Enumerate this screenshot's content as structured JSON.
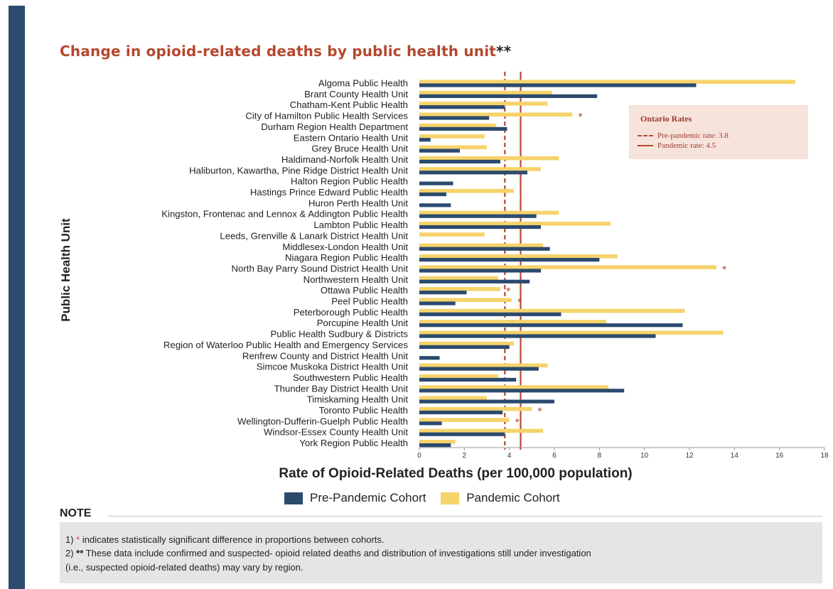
{
  "chart_data": {
    "type": "bar",
    "orientation": "horizontal",
    "title": "Change in opioid-related deaths by public health unit",
    "title_suffix": "**",
    "xlabel": "Rate of Opioid-Related Deaths (per 100,000 population)",
    "ylabel": "Public Health Unit",
    "xlim": [
      0,
      18
    ],
    "xticks": [
      0,
      2,
      4,
      6,
      8,
      10,
      12,
      14,
      16,
      18
    ],
    "grid": false,
    "categories": [
      "Algoma Public Health",
      "Brant County Health Unit",
      "Chatham-Kent Public Health",
      "City of Hamilton Public Health Services",
      "Durham Region Health Department",
      "Eastern Ontario Health Unit",
      "Grey Bruce Health Unit",
      "Haldimand-Norfolk Health Unit",
      "Haliburton, Kawartha, Pine Ridge District Health Unit",
      "Halton Region Public Health",
      "Hastings Prince Edward Public Health",
      "Huron Perth Health Unit",
      "Kingston, Frontenac and Lennox & Addington Public Health",
      "Lambton Public Health",
      "Leeds, Grenville & Lanark District Health Unit",
      "Middlesex-London Health Unit",
      "Niagara Region Public Health",
      "North Bay Parry Sound District Health Unit",
      "Northwestern Health Unit",
      "Ottawa Public Health",
      "Peel Public Health",
      "Peterborough Public Health",
      "Porcupine Health Unit",
      "Public Health Sudbury & Districts",
      "Region of Waterloo Public Health and Emergency Services",
      "Renfrew County and District Health Unit",
      "Simcoe Muskoka District Health Unit",
      "Southwestern Public Health",
      "Thunder Bay District Health Unit",
      "Timiskaming Health Unit",
      "Toronto Public Health",
      "Wellington-Dufferin-Guelph Public Health",
      "Windsor-Essex County Health Unit",
      "York Region Public Health"
    ],
    "series": [
      {
        "name": "Pre-Pandemic Cohort",
        "color": "#2b4a6e",
        "values": [
          12.3,
          7.9,
          3.8,
          3.1,
          3.9,
          0.5,
          1.8,
          3.6,
          4.8,
          1.5,
          1.2,
          1.4,
          5.2,
          5.4,
          0,
          5.8,
          8.0,
          5.4,
          4.9,
          2.1,
          1.6,
          6.3,
          11.7,
          10.5,
          4.0,
          0.9,
          5.3,
          4.3,
          9.1,
          6.0,
          3.7,
          1.0,
          3.8,
          1.4
        ]
      },
      {
        "name": "Pandemic Cohort",
        "color": "#f6d36b",
        "values": [
          16.7,
          5.9,
          5.7,
          6.8,
          3.4,
          2.9,
          3.0,
          6.2,
          5.4,
          0,
          4.2,
          0,
          6.2,
          8.5,
          2.9,
          5.5,
          8.8,
          13.2,
          3.5,
          3.6,
          4.1,
          11.8,
          8.3,
          13.5,
          4.2,
          0,
          5.7,
          3.5,
          8.4,
          3.0,
          5.0,
          4.0,
          5.5,
          1.6
        ]
      }
    ],
    "significant": [
      "City of Hamilton Public Health Services",
      "North Bay Parry Sound District Health Unit",
      "Ottawa Public Health",
      "Peel Public Health",
      "Toronto Public Health",
      "Wellington-Dufferin-Guelph Public Health"
    ],
    "significance_marker": "*",
    "reference_lines": [
      {
        "name": "Pre-pandemic rate: 3.8",
        "value": 3.8,
        "style": "dashed",
        "color": "#b5482f"
      },
      {
        "name": "Pandemic rate: 4.5",
        "value": 4.5,
        "style": "solid",
        "color": "#b5482f"
      }
    ],
    "reference_legend_title": "Ontario Rates",
    "reference_legend_placement": "top-right"
  },
  "legend": {
    "pre_label": "Pre-Pandemic Cohort",
    "pandemic_label": "Pandemic Cohort"
  },
  "note": {
    "heading": "NOTE",
    "line1_prefix": "1) ",
    "line1_marker": "*",
    "line1_text": " indicates statistically significant difference in proportions between cohorts.",
    "line2_prefix": "2) ",
    "line2_marker": "**",
    "line2_text": " These data include confirmed and suspected- opioid related deaths and distribution of investigations still under investigation",
    "line3_text": "(i.e., suspected opioid-related deaths) may vary by region."
  },
  "colors": {
    "title": "#b5482f",
    "accent_sidebar": "#2b4a6e",
    "significance_star": "#b5482f",
    "note_star": "#d0413a",
    "note_background": "#e5e5e5",
    "rates_box_background": "#f6e3dc"
  }
}
